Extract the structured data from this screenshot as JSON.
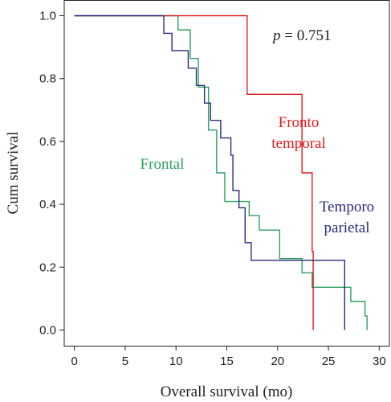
{
  "chart_data": {
    "type": "line",
    "step": true,
    "title": "",
    "xlabel": "Overall survival (mo)",
    "ylabel": "Cum survival",
    "xlim": [
      -1,
      31
    ],
    "ylim": [
      -0.05,
      1.05
    ],
    "xticks": [
      0,
      5,
      10,
      15,
      20,
      25,
      30
    ],
    "yticks": [
      0.0,
      0.2,
      0.4,
      0.6,
      0.8,
      1.0
    ],
    "xtick_labels": [
      "0",
      "5",
      "10",
      "15",
      "20",
      "25",
      "30"
    ],
    "ytick_labels": [
      "0.0",
      "0.2",
      "0.4",
      "0.6",
      "0.8",
      "1.0"
    ],
    "grid": false,
    "annotation": {
      "p_symbol": "p",
      "p_rest": " = 0.751"
    },
    "series": [
      {
        "name": "Frontal",
        "label_lines": [
          "Frontal"
        ],
        "color": "#2ca25f",
        "x": [
          0,
          8.8,
          10.2,
          11.4,
          12.2,
          13.2,
          14.0,
          14.8,
          17.2,
          18.2,
          20.2,
          22.4,
          23.4,
          27.2,
          28.6,
          28.8
        ],
        "y": [
          1.0,
          1.0,
          0.955,
          0.864,
          0.773,
          0.636,
          0.5,
          0.409,
          0.364,
          0.318,
          0.227,
          0.182,
          0.136,
          0.091,
          0.045,
          0.0
        ]
      },
      {
        "name": "Fronto temporal",
        "label_lines": [
          "Fronto",
          "temporal"
        ],
        "color": "#e31a1c",
        "x": [
          0,
          16.2,
          17.0,
          22.4,
          23.4,
          23.5
        ],
        "y": [
          1.0,
          1.0,
          0.75,
          0.5,
          0.25,
          0.0
        ]
      },
      {
        "name": "Temporo parietal",
        "label_lines": [
          "Temporo",
          "parietal"
        ],
        "color": "#2c2c7c",
        "x": [
          0,
          7.8,
          8.8,
          9.6,
          11.2,
          12.0,
          12.8,
          13.4,
          14.4,
          15.4,
          15.6,
          16.2,
          16.8,
          17.4,
          25.4,
          26.6
        ],
        "y": [
          1.0,
          1.0,
          0.944,
          0.889,
          0.833,
          0.778,
          0.722,
          0.667,
          0.611,
          0.556,
          0.444,
          0.389,
          0.278,
          0.222,
          0.222,
          0.0
        ]
      }
    ]
  }
}
